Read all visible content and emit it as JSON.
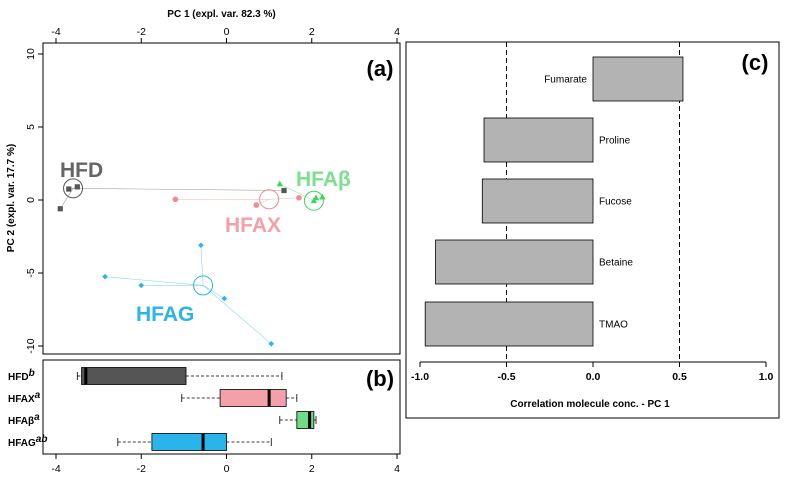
{
  "chart_data": [
    {
      "panel": "(a)",
      "type": "scatter",
      "xlabel": "PC 1 (expl. var. 82.3 %)",
      "ylabel": "PC 2 (expl. var. 17.7 %)",
      "xlim": [
        -4,
        4
      ],
      "ylim": [
        -10.5,
        10.5
      ],
      "xticks": [
        "-4",
        "-2",
        "0",
        "2",
        "4"
      ],
      "yticks": [
        "-10",
        "-5",
        "0",
        "5",
        "10"
      ],
      "groups": [
        {
          "name": "HFD",
          "color": "#555555",
          "label_color": "#666666",
          "marker": "square",
          "centroid": [
            -3.6,
            0.8
          ],
          "points": [
            [
              -3.5,
              0.9
            ],
            [
              -3.7,
              0.75
            ],
            [
              1.35,
              0.65
            ],
            [
              -3.9,
              -0.6
            ]
          ]
        },
        {
          "name": "HFAX",
          "color": "#f08a96",
          "label_color": "#f4a0aa",
          "marker": "circle",
          "centroid": [
            1.0,
            0.05
          ],
          "points": [
            [
              -1.2,
              0.05
            ],
            [
              0.7,
              -0.35
            ],
            [
              1.7,
              0.15
            ]
          ]
        },
        {
          "name": "HFAβ",
          "color": "#3bd460",
          "label_color": "#7ce08f",
          "marker": "triangle",
          "centroid": [
            2.05,
            -0.05
          ],
          "points": [
            [
              1.25,
              1.1
            ],
            [
              2.05,
              -0.05
            ],
            [
              2.1,
              0.15
            ],
            [
              2.25,
              0.2
            ]
          ]
        },
        {
          "name": "HFAG",
          "color": "#2ab4ea",
          "label_color": "#2ab4ea",
          "marker": "diamond",
          "centroid": [
            -0.55,
            -5.85
          ],
          "points": [
            [
              -0.6,
              -3.1
            ],
            [
              -2.85,
              -5.25
            ],
            [
              -2.0,
              -5.85
            ],
            [
              -0.05,
              -6.75
            ],
            [
              1.05,
              -9.85
            ]
          ]
        }
      ]
    },
    {
      "panel": "(b)",
      "type": "boxplot",
      "xlim": [
        -4,
        4
      ],
      "xticks": [
        "-4",
        "-2",
        "0",
        "2",
        "4"
      ],
      "boxes": [
        {
          "name": "HFD",
          "letter": "b",
          "color": "#555555",
          "min": -3.5,
          "q1": -3.4,
          "median": -3.3,
          "q3": -0.95,
          "max": 1.3
        },
        {
          "name": "HFAX",
          "letter": "a",
          "color": "#f4a0aa",
          "min": -1.05,
          "q1": -0.15,
          "median": 1.0,
          "q3": 1.4,
          "max": 1.65
        },
        {
          "name": "HFAβ",
          "letter": "a",
          "color": "#6fdc84",
          "min": 1.25,
          "q1": 1.65,
          "median": 1.95,
          "q3": 2.05,
          "max": 2.1
        },
        {
          "name": "HFAG",
          "letter": "ab",
          "color": "#2ab4ea",
          "min": -2.55,
          "q1": -1.75,
          "median": -0.55,
          "q3": 0.0,
          "max": 1.05
        }
      ]
    },
    {
      "panel": "(c)",
      "type": "bar",
      "orientation": "horizontal",
      "xlabel": "Correlation molecule conc. - PC 1",
      "xlim": [
        -1.05,
        1.05
      ],
      "xticks": [
        "-1.0",
        "-0.5",
        "0.0",
        "0.5",
        "1.0"
      ],
      "reference_lines": [
        -0.5,
        0.5
      ],
      "bar_color": "#b3b3b3",
      "categories": [
        "Fumarate",
        "Proline",
        "Fucose",
        "Betaine",
        "TMAO"
      ],
      "values": [
        0.52,
        -0.63,
        -0.64,
        -0.91,
        -0.97
      ]
    }
  ]
}
